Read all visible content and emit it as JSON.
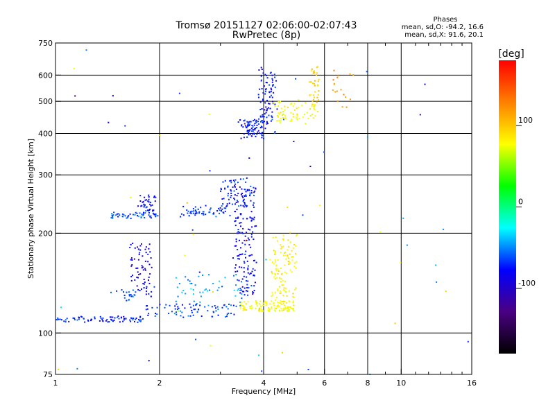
{
  "chart_data": {
    "type": "scatter",
    "title": "Tromsø 20151127 02:06:00-02:07:43",
    "subtitle": "RwPretec (8p)",
    "xlabel": "Frequency [MHz]",
    "ylabel": "Stationary phase Virtual Height [km]",
    "x_scale": "log",
    "y_scale": "log",
    "xlim": [
      1,
      16
    ],
    "ylim": [
      75,
      750
    ],
    "x_ticks": [
      1,
      2,
      4,
      6,
      8,
      10,
      16
    ],
    "x_tick_labels": [
      "1",
      "2",
      "4",
      "6",
      "8",
      "10",
      "16"
    ],
    "x_minor_ticks": [
      3,
      5,
      7,
      9,
      11,
      12,
      13,
      14,
      15
    ],
    "y_ticks": [
      75,
      100,
      200,
      300,
      400,
      500,
      600,
      750
    ],
    "y_tick_labels": [
      "75",
      "100",
      "200",
      "300",
      "400",
      "500",
      "600",
      "750"
    ],
    "grid": true,
    "legend": {
      "heading": "Phases",
      "line1": "mean, sd,O:  -94.2, 16.6",
      "line2": "mean, sd,X:  91.6, 20.1"
    },
    "colorbar": {
      "label": "[deg]",
      "range": [
        -180,
        180
      ],
      "ticks": [
        -100,
        0,
        100
      ],
      "tick_labels": [
        "-100",
        "0",
        "100"
      ],
      "colors": [
        "#000000",
        "#4b0082",
        "#0000ff",
        "#00ffff",
        "#00ff00",
        "#ffff00",
        "#ff8000",
        "#ff0000"
      ]
    },
    "series": [
      {
        "segments": [
          {
            "x": [
              1.0,
              1.8
            ],
            "y": [
              108,
              112
            ],
            "phase": -105,
            "spread": 0.008,
            "n": 80
          },
          {
            "x": [
              1.8,
              3.3
            ],
            "y": [
              112,
              122
            ],
            "phase": -100,
            "spread": 0.01,
            "n": 70
          },
          {
            "x": [
              2.2,
              3.5
            ],
            "y": [
              118,
              150
            ],
            "phase": -80,
            "spread": 0.04,
            "n": 55
          },
          {
            "x": [
              3.3,
              3.8
            ],
            "y": [
              130,
              280
            ],
            "phase": -110,
            "spread": 0.05,
            "n": 160
          },
          {
            "x": [
              1.45,
              1.7
            ],
            "y": [
              125,
              135
            ],
            "phase": -95,
            "spread": 0.03,
            "n": 20
          },
          {
            "x": [
              1.65,
              1.9
            ],
            "y": [
              130,
              185
            ],
            "phase": -115,
            "spread": 0.04,
            "n": 70
          },
          {
            "x": [
              1.45,
              2.0
            ],
            "y": [
              222,
              230
            ],
            "phase": -95,
            "spread": 0.015,
            "n": 50
          },
          {
            "x": [
              1.75,
              1.95
            ],
            "y": [
              230,
              260
            ],
            "phase": -110,
            "spread": 0.03,
            "n": 40
          },
          {
            "x": [
              2.3,
              3.2
            ],
            "y": [
              225,
              240
            ],
            "phase": -100,
            "spread": 0.02,
            "n": 55
          },
          {
            "x": [
              3.0,
              3.7
            ],
            "y": [
              240,
              290
            ],
            "phase": -105,
            "spread": 0.03,
            "n": 70
          },
          {
            "x": [
              3.4,
              4.0
            ],
            "y": [
              390,
              440
            ],
            "phase": -105,
            "spread": 0.03,
            "n": 80
          },
          {
            "x": [
              3.9,
              4.3
            ],
            "y": [
              420,
              620
            ],
            "phase": -110,
            "spread": 0.05,
            "n": 90
          }
        ],
        "scatter": {
          "n": 40,
          "phase": -100
        }
      },
      {
        "segments": [
          {
            "x": [
              3.4,
              4.9
            ],
            "y": [
              116,
              125
            ],
            "phase": 90,
            "spread": 0.01,
            "n": 110
          },
          {
            "x": [
              4.2,
              5.0
            ],
            "y": [
              125,
              200
            ],
            "phase": 95,
            "spread": 0.04,
            "n": 110
          },
          {
            "x": [
              4.3,
              5.7
            ],
            "y": [
              430,
              500
            ],
            "phase": 90,
            "spread": 0.03,
            "n": 70
          },
          {
            "x": [
              5.4,
              5.8
            ],
            "y": [
              500,
              640
            ],
            "phase": 110,
            "spread": 0.04,
            "n": 35
          },
          {
            "x": [
              6.3,
              7.2
            ],
            "y": [
              460,
              620
            ],
            "phase": 130,
            "spread": 0.04,
            "n": 18
          }
        ],
        "scatter": {
          "n": 20,
          "phase": 100
        }
      }
    ]
  }
}
